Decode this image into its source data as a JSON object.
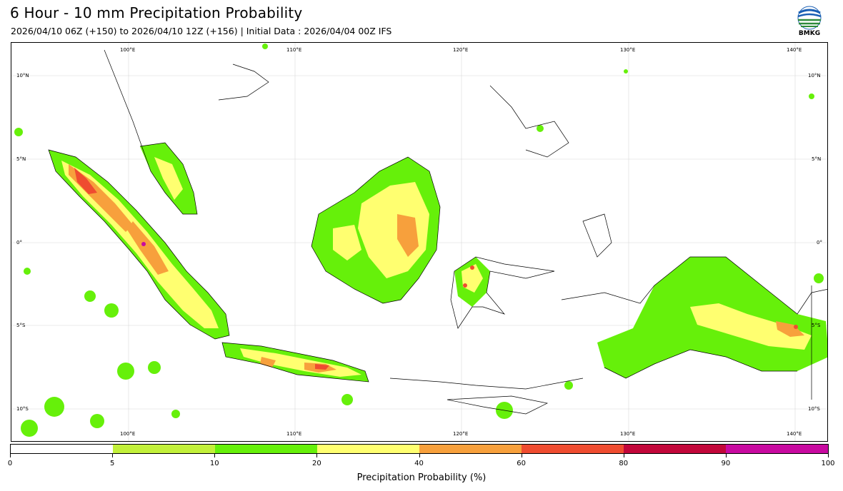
{
  "header": {
    "title": "6 Hour - 10 mm Precipitation Probability",
    "subtitle": "2026/04/10 06Z (+150) to 2026/04/10 12Z (+156) | Initial Data : 2026/04/04 00Z IFS",
    "logo_text": "BMKG"
  },
  "map": {
    "lon_labels": [
      "100°E",
      "110°E",
      "120°E",
      "130°E",
      "140°E"
    ],
    "lat_labels": [
      "10°N",
      "5°N",
      "0°",
      "5°S",
      "10°S"
    ]
  },
  "colorbar": {
    "title": "Precipitation Probability (%)",
    "ticks": [
      "0",
      "5",
      "10",
      "20",
      "40",
      "60",
      "80",
      "90",
      "100"
    ],
    "colors": [
      "#ffffff",
      "#c2f03a",
      "#66f00a",
      "#ffff70",
      "#f7a03c",
      "#ef4c30",
      "#c2073a",
      "#c80aa0"
    ]
  }
}
